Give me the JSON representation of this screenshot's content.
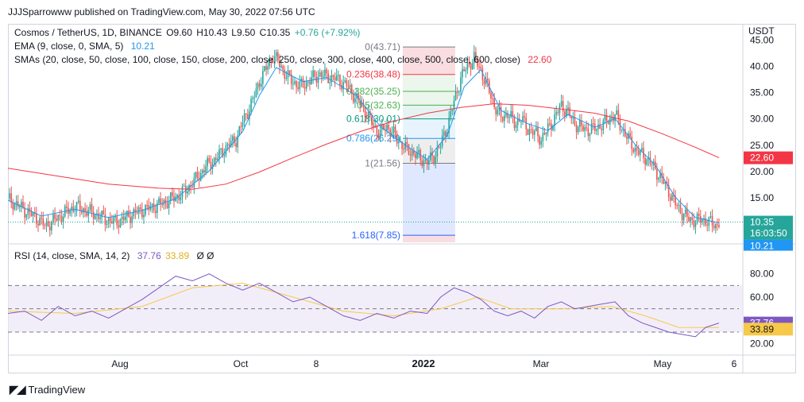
{
  "header": {
    "publisher_line": "JJJSparrowww published on TradingView.com, May 30, 2022 07:56 UTC"
  },
  "legend": {
    "symbol": "Cosmos / TetherUS, 1D, BINANCE",
    "open": "O9.60",
    "high": "H10.43",
    "low": "L9.50",
    "close": "C10.35",
    "change": "+0.76 (+7.92%)",
    "ema_label": "EMA (9, close, 0, SMA, 5)",
    "ema_value": "10.21",
    "sma_label": "SMAs (20, close, 50, close, 100, close, 150, close, 200, close, 250, close, 300, close, 400, close, 500, close, 600, close)",
    "sma_value": "22.60",
    "rsi_label": "RSI (14, close, SMA, 14, 2)",
    "rsi_value": "37.76",
    "rsi_ma_value": "33.89",
    "rsi_extra": "Ø Ø"
  },
  "colors": {
    "up": "#26a69a",
    "down": "#ef5350",
    "ema": "#2196f3",
    "sma": "#f23645",
    "rsi": "#7e57c2",
    "rsi_ma": "#f7c948",
    "price_badge": "#26a69a",
    "sma_badge": "#f23645",
    "ema_badge": "#2196f3",
    "rsi_badge": "#7e57c2",
    "rsi_ma_badge": "#f7c948"
  },
  "badges": {
    "price": "10.35",
    "countdown": "16:03:50",
    "ema": "10.21",
    "sma": "22.60",
    "rsi": "37.76",
    "rsi_ma": "33.89"
  },
  "chart_data": {
    "type": "candlestick",
    "currency_label": "USDT",
    "price_axis_ticks": [
      "45.00",
      "40.00",
      "35.00",
      "30.00",
      "25.00",
      "20.00",
      "15.00"
    ],
    "price_ylim": [
      6.5,
      46
    ],
    "rsi_axis_ticks": [
      "80.00",
      "60.00",
      "20.00"
    ],
    "rsi_ylim": [
      15,
      90
    ],
    "rsi_bands": [
      70,
      50,
      30
    ],
    "x_axis_labels": [
      "Aug",
      "Oct",
      "8",
      "2022",
      "Mar",
      "May",
      "6"
    ],
    "fibonacci": [
      {
        "label": "0(43.71)",
        "value": 43.71,
        "color": "#787b86",
        "fill": "#f8d7da"
      },
      {
        "label": "0.236(38.48)",
        "value": 38.48,
        "color": "#f23645",
        "fill": "#f8d7da"
      },
      {
        "label": "0.382(35.25)",
        "value": 35.25,
        "color": "#4caf50",
        "fill": "#e8f5e9"
      },
      {
        "label": "0.5(32.63)",
        "value": 32.63,
        "color": "#4caf50",
        "fill": "#e8f5e9"
      },
      {
        "label": "0.618(30.01)",
        "value": 30.01,
        "color": "#089981",
        "fill": "#e0f2f1"
      },
      {
        "label": "0.786(26.29)",
        "value": 26.29,
        "color": "#2196f3",
        "fill": "#e3f2fd"
      },
      {
        "label": "1(21.56)",
        "value": 21.56,
        "color": "#787b86",
        "fill": "#ebebeb"
      },
      {
        "label": "1.618(7.85)",
        "value": 7.85,
        "color": "#2962ff",
        "fill": "#dbe4ff"
      }
    ],
    "fib_extension_bottom_fill": "#f8d7da",
    "price_path": [
      [
        0,
        14.8
      ],
      [
        6,
        13.5
      ],
      [
        12,
        12.2
      ],
      [
        18,
        10.9
      ],
      [
        22,
        9.6
      ],
      [
        28,
        10.8
      ],
      [
        34,
        12.1
      ],
      [
        40,
        13.4
      ],
      [
        46,
        12.6
      ],
      [
        52,
        11.9
      ],
      [
        58,
        10.9
      ],
      [
        64,
        10.3
      ],
      [
        70,
        11.2
      ],
      [
        76,
        12.1
      ],
      [
        82,
        12.8
      ],
      [
        88,
        13.4
      ],
      [
        94,
        14.2
      ],
      [
        100,
        15.1
      ],
      [
        106,
        16.4
      ],
      [
        112,
        18.5
      ],
      [
        118,
        20.9
      ],
      [
        124,
        22.4
      ],
      [
        130,
        24.6
      ],
      [
        136,
        26.1
      ],
      [
        140,
        29.4
      ],
      [
        146,
        33.5
      ],
      [
        150,
        37.2
      ],
      [
        154,
        39.6
      ],
      [
        158,
        42.1
      ],
      [
        162,
        40.5
      ],
      [
        166,
        38.2
      ],
      [
        170,
        37.1
      ],
      [
        174,
        36.2
      ],
      [
        178,
        36.9
      ],
      [
        182,
        37.8
      ],
      [
        186,
        38.5
      ],
      [
        190,
        38.1
      ],
      [
        196,
        37.6
      ],
      [
        202,
        36.4
      ],
      [
        208,
        33.8
      ],
      [
        214,
        31.1
      ],
      [
        218,
        28.5
      ],
      [
        222,
        27.4
      ],
      [
        226,
        28.6
      ],
      [
        230,
        27.1
      ],
      [
        234,
        25.4
      ],
      [
        238,
        24.1
      ],
      [
        242,
        23.5
      ],
      [
        246,
        22.4
      ],
      [
        250,
        21.8
      ],
      [
        254,
        22.9
      ],
      [
        258,
        25.1
      ],
      [
        262,
        28.6
      ],
      [
        266,
        33.2
      ],
      [
        270,
        37.9
      ],
      [
        274,
        40.1
      ],
      [
        278,
        41.6
      ],
      [
        282,
        39.2
      ],
      [
        286,
        36.1
      ],
      [
        290,
        32.6
      ],
      [
        294,
        30.2
      ],
      [
        298,
        31.1
      ],
      [
        302,
        29.2
      ],
      [
        306,
        30.1
      ],
      [
        310,
        28.1
      ],
      [
        314,
        27.3
      ],
      [
        318,
        26.2
      ],
      [
        322,
        28.1
      ],
      [
        326,
        30.2
      ],
      [
        330,
        32.6
      ],
      [
        334,
        31.2
      ],
      [
        338,
        29.1
      ],
      [
        342,
        28.3
      ],
      [
        346,
        27.9
      ],
      [
        350,
        28.2
      ],
      [
        354,
        28.9
      ],
      [
        358,
        29.8
      ],
      [
        362,
        30.8
      ],
      [
        366,
        28.3
      ],
      [
        370,
        26.1
      ],
      [
        374,
        24.2
      ],
      [
        378,
        23.2
      ],
      [
        382,
        22.1
      ],
      [
        386,
        20.3
      ],
      [
        390,
        18.5
      ],
      [
        394,
        16.2
      ],
      [
        398,
        13.8
      ],
      [
        402,
        12.1
      ],
      [
        406,
        10.9
      ],
      [
        410,
        10.6
      ],
      [
        414,
        10.9
      ],
      [
        418,
        10.4
      ],
      [
        422,
        9.7
      ],
      [
        424,
        10.35
      ]
    ],
    "ema_path": [
      [
        0,
        14.5
      ],
      [
        20,
        11.5
      ],
      [
        40,
        12.8
      ],
      [
        60,
        11.2
      ],
      [
        80,
        12.6
      ],
      [
        100,
        14.8
      ],
      [
        120,
        20.1
      ],
      [
        140,
        27.6
      ],
      [
        150,
        34.5
      ],
      [
        160,
        39.8
      ],
      [
        176,
        37.1
      ],
      [
        190,
        37.9
      ],
      [
        208,
        34.4
      ],
      [
        222,
        28.6
      ],
      [
        238,
        24.8
      ],
      [
        250,
        22.3
      ],
      [
        262,
        26.9
      ],
      [
        272,
        36.1
      ],
      [
        282,
        39.4
      ],
      [
        294,
        31.6
      ],
      [
        310,
        29.1
      ],
      [
        322,
        27.8
      ],
      [
        334,
        30.9
      ],
      [
        350,
        28.4
      ],
      [
        362,
        30.1
      ],
      [
        374,
        25.1
      ],
      [
        386,
        21.2
      ],
      [
        398,
        15.1
      ],
      [
        410,
        11.2
      ],
      [
        424,
        10.21
      ]
    ],
    "sma_path": [
      [
        0,
        20.6
      ],
      [
        30,
        19.1
      ],
      [
        60,
        17.6
      ],
      [
        90,
        16.8
      ],
      [
        110,
        16.6
      ],
      [
        130,
        17.6
      ],
      [
        150,
        19.9
      ],
      [
        170,
        22.6
      ],
      [
        190,
        25.2
      ],
      [
        210,
        27.6
      ],
      [
        230,
        29.6
      ],
      [
        250,
        31.1
      ],
      [
        270,
        32.2
      ],
      [
        290,
        32.9
      ],
      [
        310,
        32.6
      ],
      [
        330,
        31.9
      ],
      [
        350,
        31.1
      ],
      [
        370,
        29.6
      ],
      [
        390,
        27.2
      ],
      [
        410,
        24.6
      ],
      [
        424,
        22.6
      ]
    ],
    "rsi_path": [
      [
        0,
        46
      ],
      [
        10,
        48
      ],
      [
        20,
        40
      ],
      [
        30,
        52
      ],
      [
        40,
        44
      ],
      [
        50,
        48
      ],
      [
        60,
        42
      ],
      [
        70,
        50
      ],
      [
        80,
        58
      ],
      [
        90,
        68
      ],
      [
        100,
        78
      ],
      [
        110,
        74
      ],
      [
        120,
        80
      ],
      [
        130,
        72
      ],
      [
        140,
        66
      ],
      [
        150,
        72
      ],
      [
        160,
        64
      ],
      [
        170,
        56
      ],
      [
        180,
        60
      ],
      [
        190,
        52
      ],
      [
        200,
        44
      ],
      [
        210,
        40
      ],
      [
        220,
        46
      ],
      [
        230,
        42
      ],
      [
        240,
        48
      ],
      [
        250,
        46
      ],
      [
        258,
        60
      ],
      [
        266,
        68
      ],
      [
        274,
        64
      ],
      [
        282,
        58
      ],
      [
        290,
        48
      ],
      [
        298,
        44
      ],
      [
        306,
        48
      ],
      [
        314,
        42
      ],
      [
        322,
        52
      ],
      [
        330,
        56
      ],
      [
        338,
        50
      ],
      [
        346,
        52
      ],
      [
        354,
        54
      ],
      [
        362,
        56
      ],
      [
        370,
        44
      ],
      [
        378,
        38
      ],
      [
        386,
        34
      ],
      [
        394,
        30
      ],
      [
        402,
        28
      ],
      [
        410,
        26
      ],
      [
        416,
        34
      ],
      [
        424,
        37.76
      ]
    ],
    "rsi_ma_path": [
      [
        0,
        48
      ],
      [
        40,
        46
      ],
      [
        80,
        52
      ],
      [
        110,
        68
      ],
      [
        140,
        72
      ],
      [
        170,
        60
      ],
      [
        200,
        48
      ],
      [
        230,
        44
      ],
      [
        258,
        50
      ],
      [
        280,
        60
      ],
      [
        300,
        50
      ],
      [
        330,
        50
      ],
      [
        360,
        52
      ],
      [
        380,
        44
      ],
      [
        400,
        34
      ],
      [
        424,
        33.89
      ]
    ],
    "last_index": 424
  }
}
